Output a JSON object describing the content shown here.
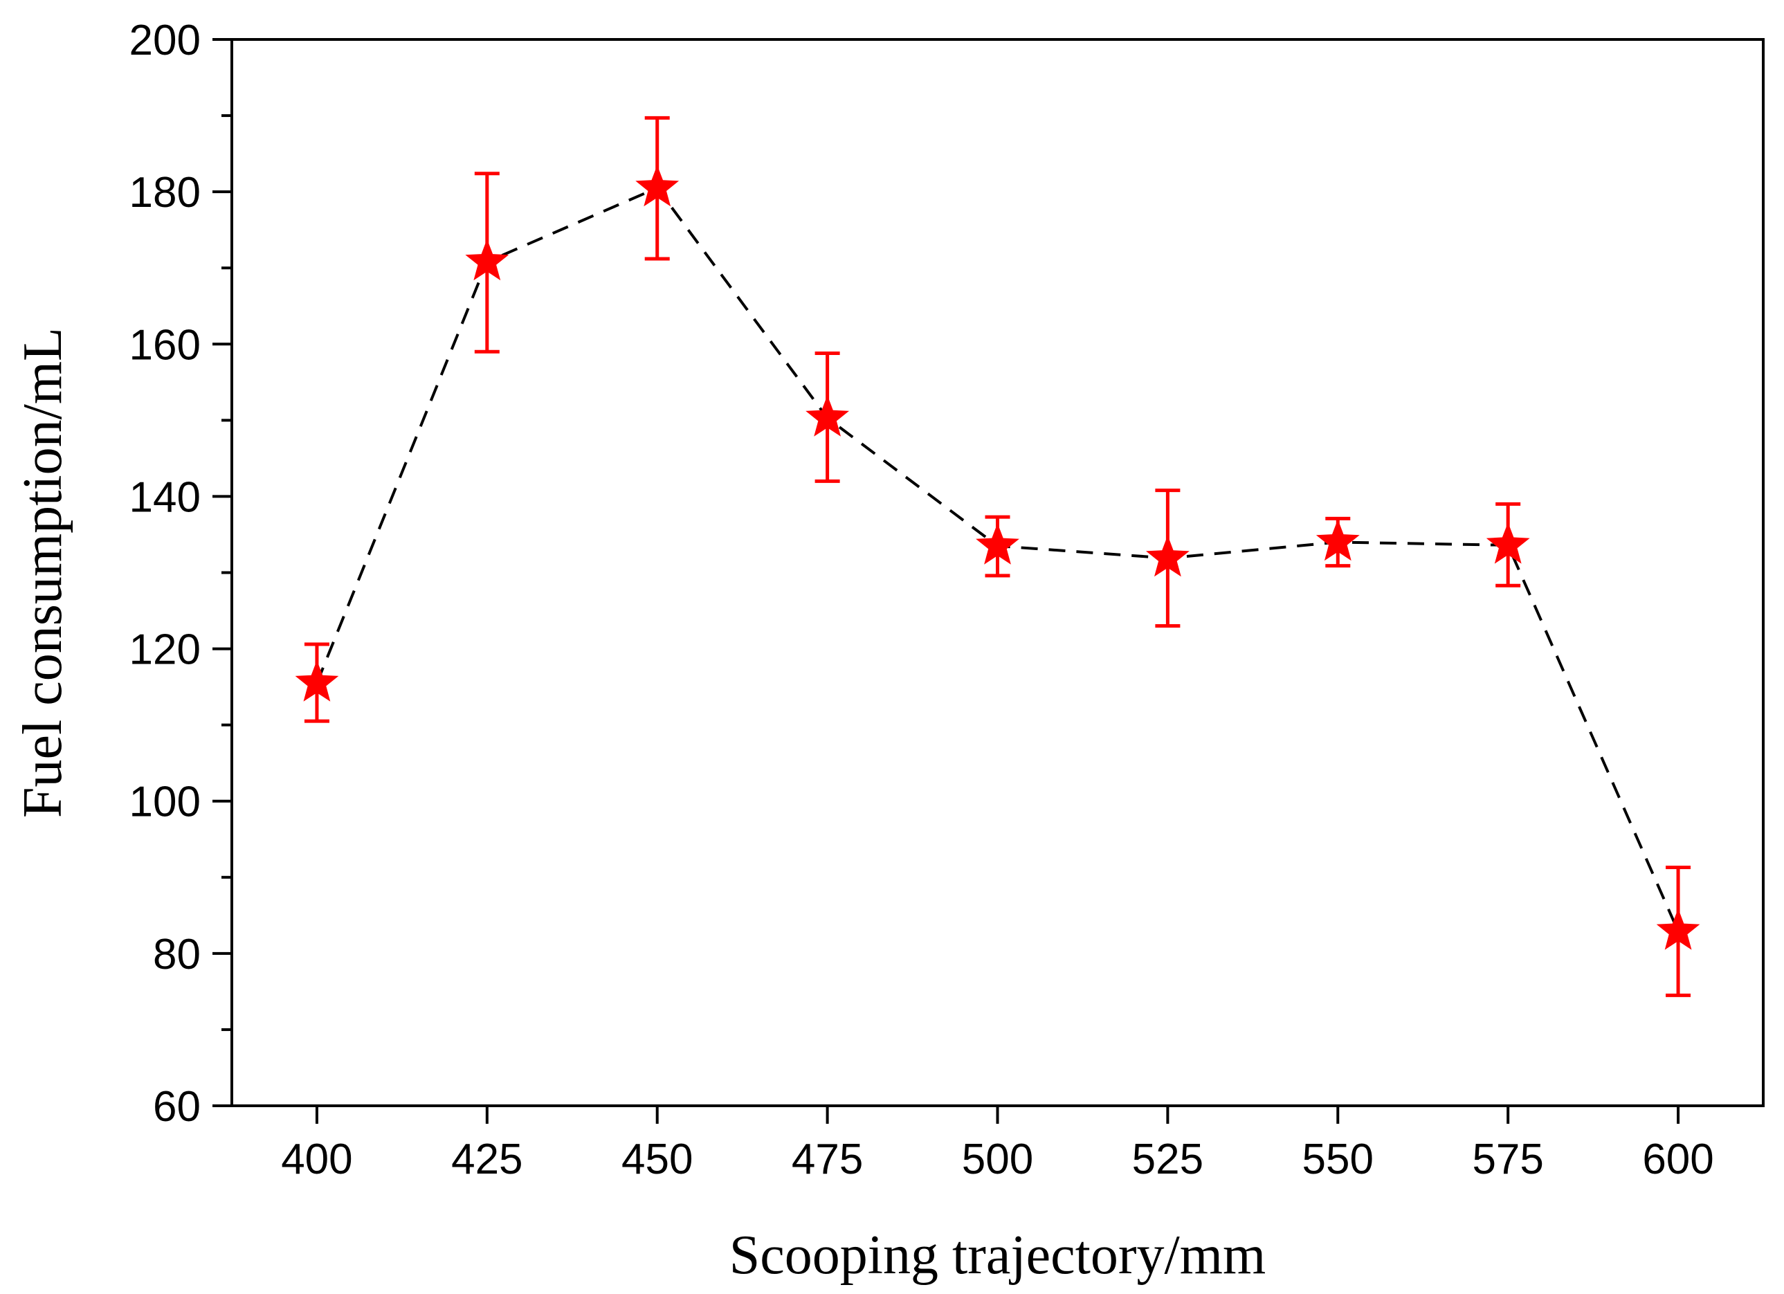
{
  "chart_data": {
    "type": "line",
    "title": "",
    "xlabel": "Scooping trajectory/mm",
    "ylabel": "Fuel consumption/mL",
    "xlim": [
      387.5,
      612.5
    ],
    "ylim": [
      60,
      200
    ],
    "x_ticks": [
      400,
      425,
      450,
      475,
      500,
      525,
      550,
      575,
      600
    ],
    "y_ticks": [
      60,
      80,
      100,
      120,
      140,
      160,
      180,
      200
    ],
    "grid": false,
    "legend": "none",
    "series": [
      {
        "name": "Fuel consumption",
        "line_style": "dashed",
        "line_color": "#000000",
        "marker": "star",
        "marker_color": "#ff0000",
        "x": [
          400,
          425,
          450,
          475,
          500,
          525,
          550,
          575,
          600
        ],
        "y": [
          115.5,
          170.8,
          180.5,
          150.3,
          133.5,
          131.9,
          134.0,
          133.6,
          82.9
        ],
        "err_low": [
          110.5,
          159.0,
          171.2,
          142.0,
          129.6,
          123.0,
          130.9,
          128.3,
          74.5
        ],
        "err_high": [
          120.6,
          182.4,
          189.7,
          158.8,
          137.3,
          140.8,
          137.1,
          139.0,
          91.3
        ]
      }
    ]
  }
}
